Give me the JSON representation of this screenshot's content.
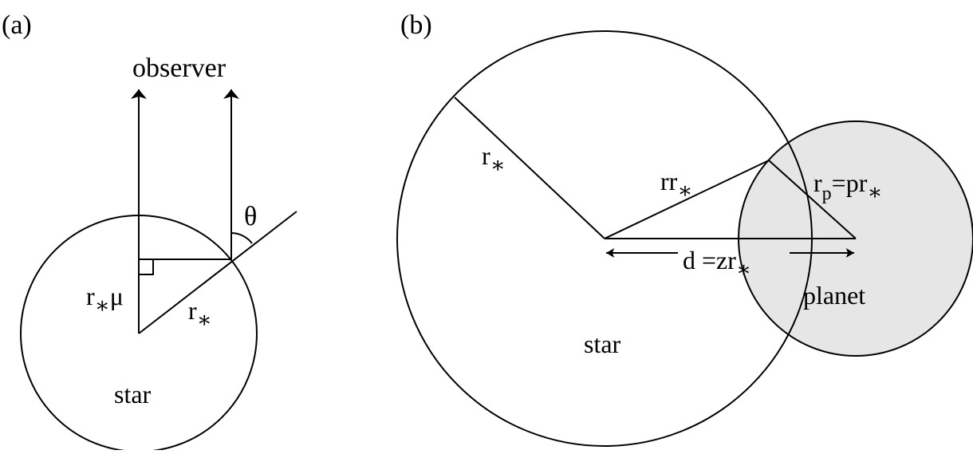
{
  "panel_a": {
    "label": "(a)",
    "observer": "observer",
    "theta": "θ",
    "r_mu": {
      "r": "r",
      "star": "∗",
      "mu": "μ"
    },
    "r_star": {
      "r": "r",
      "star": "∗"
    },
    "star": "star"
  },
  "panel_b": {
    "label": "(b)",
    "r_star": {
      "r": "r",
      "star": "∗"
    },
    "rr_star": {
      "rr": "rr",
      "star": "∗"
    },
    "rp_eq": {
      "r": "r",
      "p_sub": "p",
      "eq": "=pr",
      "star": "∗"
    },
    "distance": {
      "d": "d =zr",
      "star": "∗"
    },
    "star": "star",
    "planet": "planet"
  },
  "colors": {
    "stroke": "#000000",
    "planet_fill": "#e6e6e6",
    "background": "#ffffff"
  }
}
